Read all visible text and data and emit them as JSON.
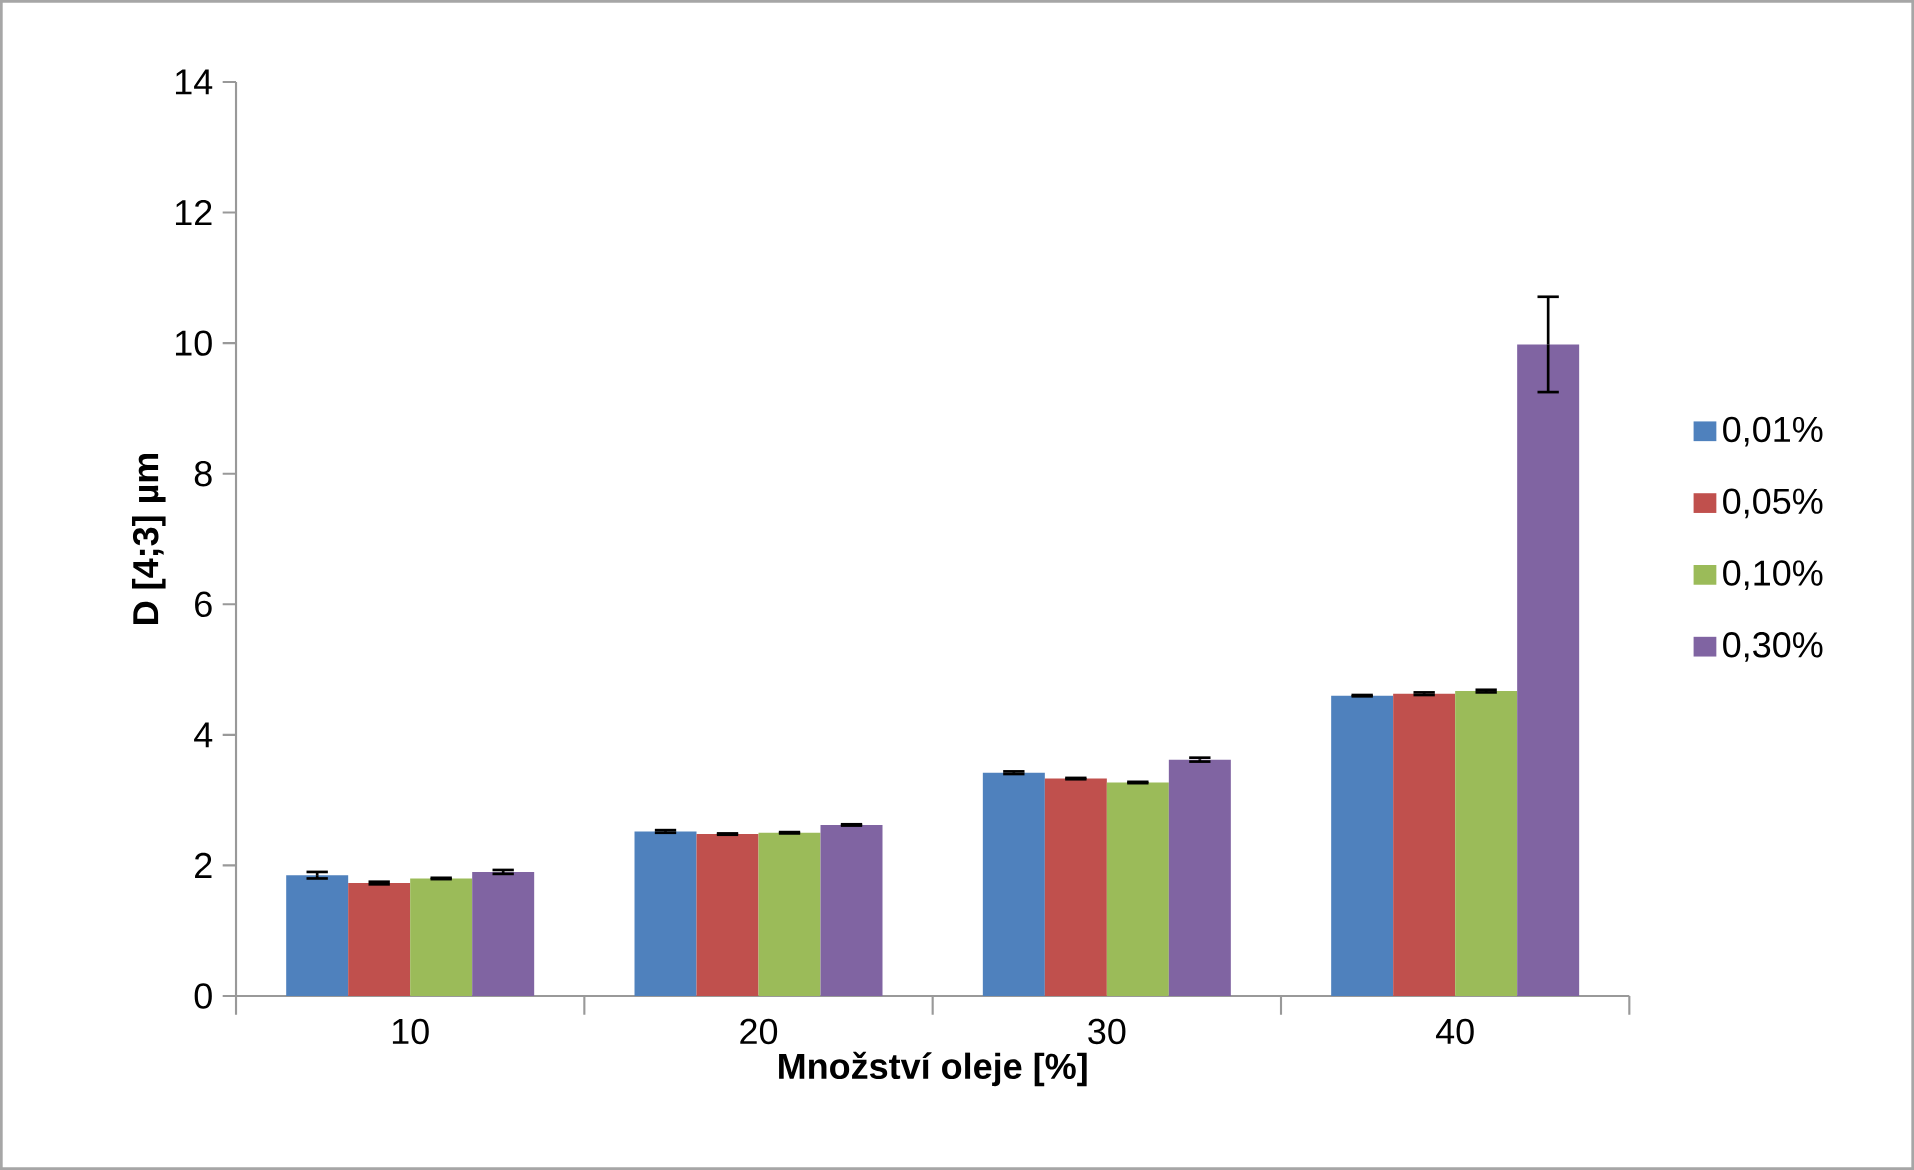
{
  "chart_data": {
    "type": "bar",
    "xlabel": "Množství oleje [%]",
    "ylabel": "D [4;3] µm",
    "categories": [
      "10",
      "20",
      "30",
      "40"
    ],
    "series": [
      {
        "name": "0,01%",
        "color": "#4f81bd",
        "values": [
          1.85,
          2.52,
          3.42,
          4.6
        ],
        "errors": [
          0.05,
          0.02,
          0.02,
          0.01
        ]
      },
      {
        "name": "0,05%",
        "color": "#c0504d",
        "values": [
          1.73,
          2.48,
          3.33,
          4.63
        ],
        "errors": [
          0.02,
          0.01,
          0.01,
          0.02
        ]
      },
      {
        "name": "0,10%",
        "color": "#9bbb59",
        "values": [
          1.8,
          2.5,
          3.27,
          4.67
        ],
        "errors": [
          0.01,
          0.01,
          0.01,
          0.02
        ]
      },
      {
        "name": "0,30%",
        "color": "#8064a2",
        "values": [
          1.9,
          2.62,
          3.62,
          9.98
        ],
        "errors": [
          0.03,
          0.01,
          0.03,
          0.73
        ]
      }
    ],
    "ylim": [
      0,
      14
    ],
    "yticks": [
      0,
      2,
      4,
      6,
      8,
      10,
      12,
      14
    ],
    "grid": false,
    "legend": "right"
  }
}
